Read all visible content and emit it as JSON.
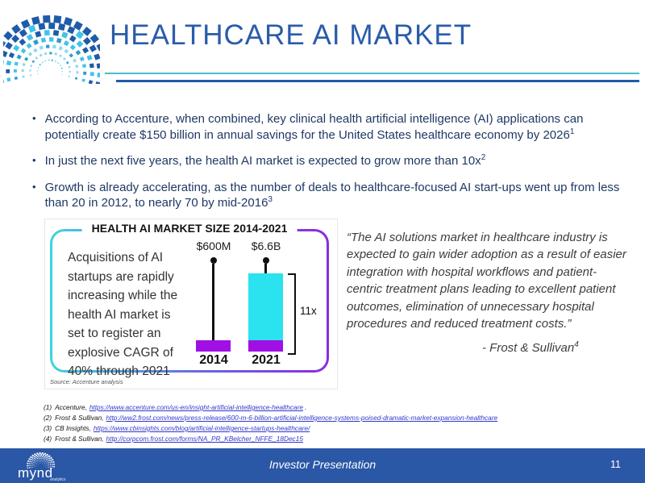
{
  "slide": {
    "title": "HEALTHCARE AI MARKET",
    "bullet_char": "•",
    "footer_text": "Investor Presentation",
    "page_number": "11"
  },
  "bullets": [
    {
      "text": "According to Accenture, when combined, key clinical health artificial intelligence (AI) applications can potentially create $150 billion in annual savings for the United States healthcare economy by 2026",
      "sup": "1"
    },
    {
      "text": "In just the next five years, the health AI market is expected to grow more than 10x",
      "sup": "2"
    },
    {
      "text": "Growth is already accelerating, as the number of deals to healthcare-focused AI start-ups went up from less than 20 in 2012, to nearly 70 by mid-2016",
      "sup": "3"
    }
  ],
  "chart_data": {
    "type": "bar",
    "title": "HEALTH AI MARKET SIZE 2014-2021",
    "categories": [
      "2014",
      "2021"
    ],
    "values": [
      0.6,
      6.6
    ],
    "unit": "USD billions",
    "value_labels": [
      "$600M",
      "$6.6B"
    ],
    "growth_annotation": "11x",
    "side_note": "Acquisitions of AI startups are rapidly increasing while the health AI market is set to register an explosive CAGR of 40% through 2021",
    "source": "Source: Accenture analysis",
    "legend": "none",
    "colors": {
      "bar_2021": "#2BE2EF",
      "bar_base": "#A00FE4",
      "frame_gradient_left": "#3ED4DE",
      "frame_gradient_right": "#8A2BE2"
    }
  },
  "quote": {
    "text": "“The AI solutions market in healthcare industry is expected to gain wider adoption as a result of easier integration with hospital workflows and patient-centric treatment plans leading to excellent patient outcomes, elimination of unnecessary hospital procedures and reduced treatment costs.”",
    "attribution": "- Frost & Sullivan",
    "attribution_sup": "4"
  },
  "footnotes": [
    {
      "label": "(1)",
      "source": "Accenture,",
      "link": "https://www.accenture.com/us-en/insight-artificial-intelligence-healthcare",
      "suffix": " ."
    },
    {
      "label": "(2)",
      "source": "Frost & Sullivan,",
      "link": "http://ww2.frost.com/news/press-release/600-m-6-billion-artificial-intelligence-systems-poised-dramatic-market-expansion-healthcare",
      "suffix": ""
    },
    {
      "label": "(3)",
      "source": "CB Insights,",
      "link": "https://www.cbinsights.com/blog/artificial-intelligence-startups-healthcare/",
      "suffix": ""
    },
    {
      "label": "(4)",
      "source": "Frost & Sullivan,",
      "link": "http://corpcom.frost.com/forms/NA_PR_KBelcher_NFFE_18Dec15",
      "suffix": ""
    }
  ],
  "branding": {
    "logo_text": "mynd",
    "logo_sub": "analytics"
  },
  "theme": {
    "title_blue": "#2A5CAA",
    "rule_cyan": "#4ABCCD",
    "rule_blue": "#1F5CA9",
    "body_navy": "#1F3864",
    "footer_blue": "#2A57A6",
    "link_blue": "#3138C9"
  }
}
